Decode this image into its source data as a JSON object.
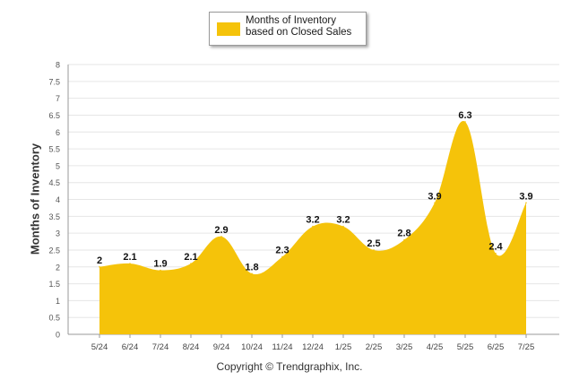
{
  "chart_data": {
    "type": "area",
    "categories": [
      "5/24",
      "6/24",
      "7/24",
      "8/24",
      "9/24",
      "10/24",
      "11/24",
      "12/24",
      "1/25",
      "2/25",
      "3/25",
      "4/25",
      "5/25",
      "6/25",
      "7/25"
    ],
    "series": [
      {
        "name": "Months of Inventory based on Closed Sales",
        "values": [
          2,
          2.1,
          1.9,
          2.1,
          2.9,
          1.8,
          2.3,
          3.2,
          3.2,
          2.5,
          2.8,
          3.9,
          6.3,
          2.4,
          3.9
        ],
        "color": "#f5c30a"
      }
    ],
    "data_labels": [
      "2",
      "2.1",
      "1.9",
      "2.1",
      "2.9",
      "1.8",
      "2.3",
      "3.2",
      "3.2",
      "2.5",
      "2.8",
      "3.9",
      "6.3",
      "2.4",
      "3.9"
    ],
    "ylabel": "Months of Inventory",
    "xlabel": "",
    "ylim": [
      0,
      8
    ],
    "yticks": [
      "0",
      "0.5",
      "1",
      "1.5",
      "2",
      "2.5",
      "3",
      "3.5",
      "4",
      "4.5",
      "5",
      "5.5",
      "6",
      "6.5",
      "7",
      "7.5",
      "8"
    ],
    "grid": true,
    "legend_position": "top-center"
  },
  "legend": {
    "label": "Months of Inventory based on Closed Sales"
  },
  "footer": {
    "copyright": "Copyright © Trendgraphix, Inc."
  },
  "colors": {
    "fill": "#f5c30a",
    "grid": "#e6e6e6",
    "axis": "#999999",
    "text": "#333333"
  }
}
